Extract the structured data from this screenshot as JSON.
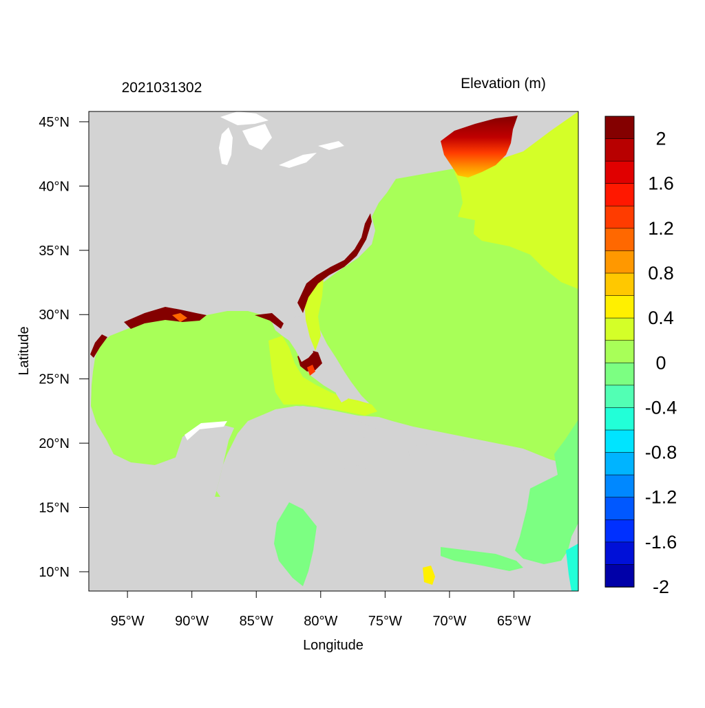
{
  "header": {
    "timestamp": "2021031302",
    "variable_title": "Elevation (m)"
  },
  "axes": {
    "xlabel": "Longitude",
    "ylabel": "Latitude",
    "x_ticks": [
      {
        "value": -95,
        "label": "95°W"
      },
      {
        "value": -90,
        "label": "90°W"
      },
      {
        "value": -85,
        "label": "85°W"
      },
      {
        "value": -80,
        "label": "80°W"
      },
      {
        "value": -75,
        "label": "75°W"
      },
      {
        "value": -70,
        "label": "70°W"
      },
      {
        "value": -65,
        "label": "65°W"
      }
    ],
    "y_ticks": [
      {
        "value": 45,
        "label": "45°N"
      },
      {
        "value": 40,
        "label": "40°N"
      },
      {
        "value": 35,
        "label": "35°N"
      },
      {
        "value": 30,
        "label": "30°N"
      },
      {
        "value": 25,
        "label": "25°N"
      },
      {
        "value": 20,
        "label": "20°N"
      },
      {
        "value": 15,
        "label": "15°N"
      },
      {
        "value": 10,
        "label": "10°N"
      }
    ],
    "lon_range": [
      -98,
      -60
    ],
    "lat_range": [
      8.5,
      45.8
    ]
  },
  "colorbar": {
    "colors": [
      "#0000a8",
      "#0010d8",
      "#0030ff",
      "#0058ff",
      "#0088ff",
      "#00b4ff",
      "#00e4ff",
      "#22ffd8",
      "#52ffb4",
      "#7cff82",
      "#a8ff58",
      "#d4ff28",
      "#fff000",
      "#ffc800",
      "#ff9800",
      "#ff6800",
      "#ff3c00",
      "#ff1800",
      "#e00000",
      "#b80000",
      "#840000"
    ],
    "tick_labels": [
      "2",
      "1.6",
      "1.2",
      "0.8",
      "0.4",
      "0",
      "-0.4",
      "-0.8",
      "-1.2",
      "-1.6",
      "-2"
    ]
  },
  "colors": {
    "land": "#d3d3d3",
    "ocean_near_zero": "#a8ff58",
    "ocean_positive_low": "#d4ff28",
    "ocean_negative_low": "#7cff82",
    "surge_high": "#840000"
  }
}
